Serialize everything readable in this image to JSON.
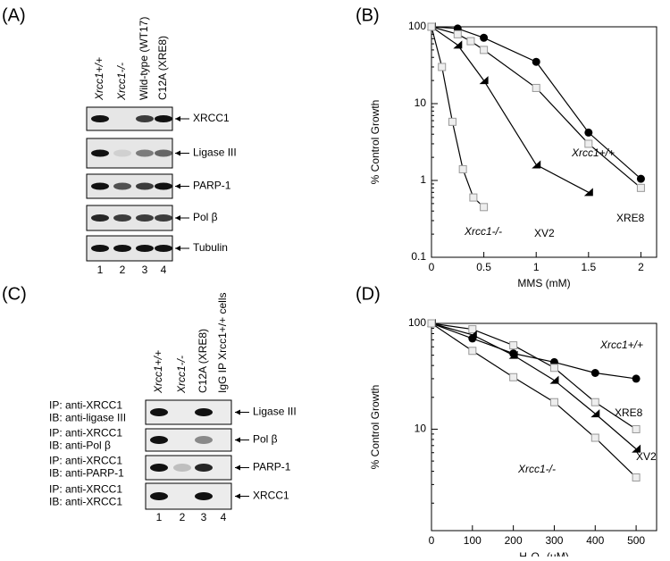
{
  "panels": {
    "a": {
      "letter": "(A)",
      "lanes": [
        "Xrcc1+/+",
        "Xrcc1-/-",
        "Wild-type (WT17)",
        "C12A (XRE8)"
      ],
      "rows": [
        "XRCC1",
        "Ligase III",
        "PARP-1",
        "Pol β",
        "Tubulin"
      ],
      "lane_numbers": [
        "1",
        "2",
        "3",
        "4"
      ]
    },
    "b": {
      "letter": "(B)"
    },
    "c": {
      "letter": "(C)",
      "lanes": [
        "Xrcc1+/+",
        "Xrcc1-/-",
        "C12A (XRE8)",
        "IgG IP Xrcc1+/+ cells"
      ],
      "rows": [
        {
          "ip": "IP: anti-XRCC1",
          "ib": "IB: anti-ligase III",
          "label": "Ligase III"
        },
        {
          "ip": "IP: anti-XRCC1",
          "ib": "IB: anti-Pol β",
          "label": "Pol β"
        },
        {
          "ip": "IP: anti-XRCC1",
          "ib": "IB: anti-PARP-1",
          "label": "PARP-1"
        },
        {
          "ip": "IP: anti-XRCC1",
          "ib": "IB: anti-XRCC1",
          "label": "XRCC1"
        }
      ],
      "lane_numbers": [
        "1",
        "2",
        "3",
        "4"
      ]
    },
    "d": {
      "letter": "(D)"
    }
  },
  "chart_data": [
    {
      "type": "line",
      "y_label": "% Control Growth",
      "x_label": "MMS (mM)",
      "log_y": true,
      "xlim": [
        0,
        2.15
      ],
      "ylim": [
        0.1,
        100
      ],
      "xticks": [
        0,
        0.5,
        1,
        1.5,
        2
      ],
      "yticks": [
        0.1,
        1,
        10,
        100
      ],
      "series": [
        {
          "name": "Xrcc1+/+",
          "color": "#000000",
          "marker": "circle",
          "x": [
            0,
            0.25,
            0.5,
            1,
            1.5,
            2
          ],
          "values": [
            100,
            95,
            72,
            35,
            4.2,
            1.05
          ]
        },
        {
          "name": "XRE8",
          "color": "#999999",
          "marker": "square",
          "x": [
            0,
            0.25,
            0.375,
            0.5,
            1,
            1.5,
            2
          ],
          "values": [
            100,
            80,
            65,
            50,
            16,
            3,
            0.8
          ]
        },
        {
          "name": "XV2",
          "color": "#000000",
          "marker": "triangle",
          "x": [
            0,
            0.25,
            0.5,
            1,
            1.5
          ],
          "values": [
            100,
            58,
            20,
            1.6,
            0.7
          ]
        },
        {
          "name": "Xrcc1-/-",
          "color": "#999999",
          "marker": "square",
          "x": [
            0,
            0.1,
            0.2,
            0.3,
            0.4,
            0.5
          ],
          "values": [
            100,
            30,
            5.8,
            1.4,
            0.6,
            0.45
          ]
        }
      ]
    },
    {
      "type": "line",
      "y_label": "% Control Growth",
      "x_label": "H₂O₂ (µM)",
      "log_y": true,
      "xlim": [
        0,
        550
      ],
      "ylim": [
        1.1,
        100
      ],
      "xticks": [
        0,
        100,
        200,
        300,
        400,
        500
      ],
      "yticks": [
        10,
        100
      ],
      "series": [
        {
          "name": "Xrcc1+/+",
          "color": "#000000",
          "marker": "circle",
          "x": [
            0,
            100,
            200,
            300,
            400,
            500
          ],
          "values": [
            100,
            72,
            52,
            43,
            34,
            30
          ]
        },
        {
          "name": "XRE8",
          "color": "#999999",
          "marker": "square",
          "x": [
            0,
            100,
            200,
            300,
            400,
            500
          ],
          "values": [
            100,
            88,
            62,
            38,
            18,
            10
          ]
        },
        {
          "name": "XV2",
          "color": "#000000",
          "marker": "triangle",
          "x": [
            0,
            100,
            200,
            300,
            400,
            500
          ],
          "values": [
            100,
            78,
            50,
            29,
            14,
            6.5
          ]
        },
        {
          "name": "Xrcc1-/-",
          "color": "#999999",
          "marker": "square",
          "x": [
            0,
            100,
            200,
            300,
            400,
            500
          ],
          "values": [
            100,
            55,
            31,
            18,
            8.3,
            3.5
          ]
        }
      ]
    }
  ]
}
